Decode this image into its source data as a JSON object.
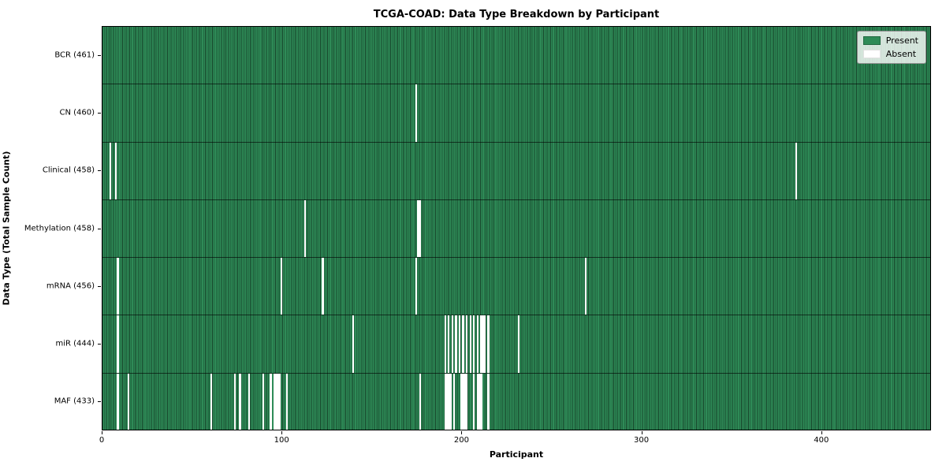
{
  "chart_data": {
    "type": "heatmap",
    "title": "TCGA-COAD: Data Type Breakdown by Participant",
    "xlabel": "Participant",
    "ylabel": "Data Type (Total Sample Count)",
    "xlim": [
      0,
      461
    ],
    "x_ticks": [
      0,
      100,
      200,
      300,
      400
    ],
    "n_participants": 461,
    "grid": false,
    "legend_position": "upper right",
    "legend": [
      {
        "label": "Present",
        "color": "#2e8b57"
      },
      {
        "label": "Absent",
        "color": "#ffffff"
      }
    ],
    "colors": {
      "present": "#2e8b57",
      "absent": "#ffffff",
      "cell_edge": "rgba(0,0,0,0.5)",
      "row_separator": "rgba(0,0,0,0.6)",
      "spine": "#000000"
    },
    "rows": [
      {
        "label": "BCR (461)",
        "data_type": "BCR",
        "total_samples": 461,
        "absent_participants": []
      },
      {
        "label": "CN (460)",
        "data_type": "CN",
        "total_samples": 460,
        "absent_participants": [
          174
        ]
      },
      {
        "label": "Clinical (458)",
        "data_type": "Clinical",
        "total_samples": 458,
        "absent_participants": [
          4,
          7,
          385
        ]
      },
      {
        "label": "Methylation (458)",
        "data_type": "Methylation",
        "total_samples": 458,
        "absent_participants": [
          112,
          175,
          176
        ]
      },
      {
        "label": "mRNA (456)",
        "data_type": "mRNA",
        "total_samples": 456,
        "absent_participants": [
          8,
          99,
          122,
          174,
          268
        ]
      },
      {
        "label": "miR (444)",
        "data_type": "miR",
        "total_samples": 444,
        "absent_participants": [
          8,
          139,
          190,
          192,
          194,
          196,
          198,
          200,
          202,
          204,
          206,
          208,
          210,
          211,
          212,
          214,
          231
        ]
      },
      {
        "label": "MAF (433)",
        "data_type": "MAF",
        "total_samples": 433,
        "absent_participants": [
          8,
          14,
          60,
          73,
          76,
          81,
          89,
          93,
          95,
          96,
          97,
          98,
          102,
          176,
          190,
          191,
          192,
          193,
          195,
          199,
          200,
          201,
          202,
          206,
          208,
          209,
          210,
          214
        ]
      }
    ]
  }
}
